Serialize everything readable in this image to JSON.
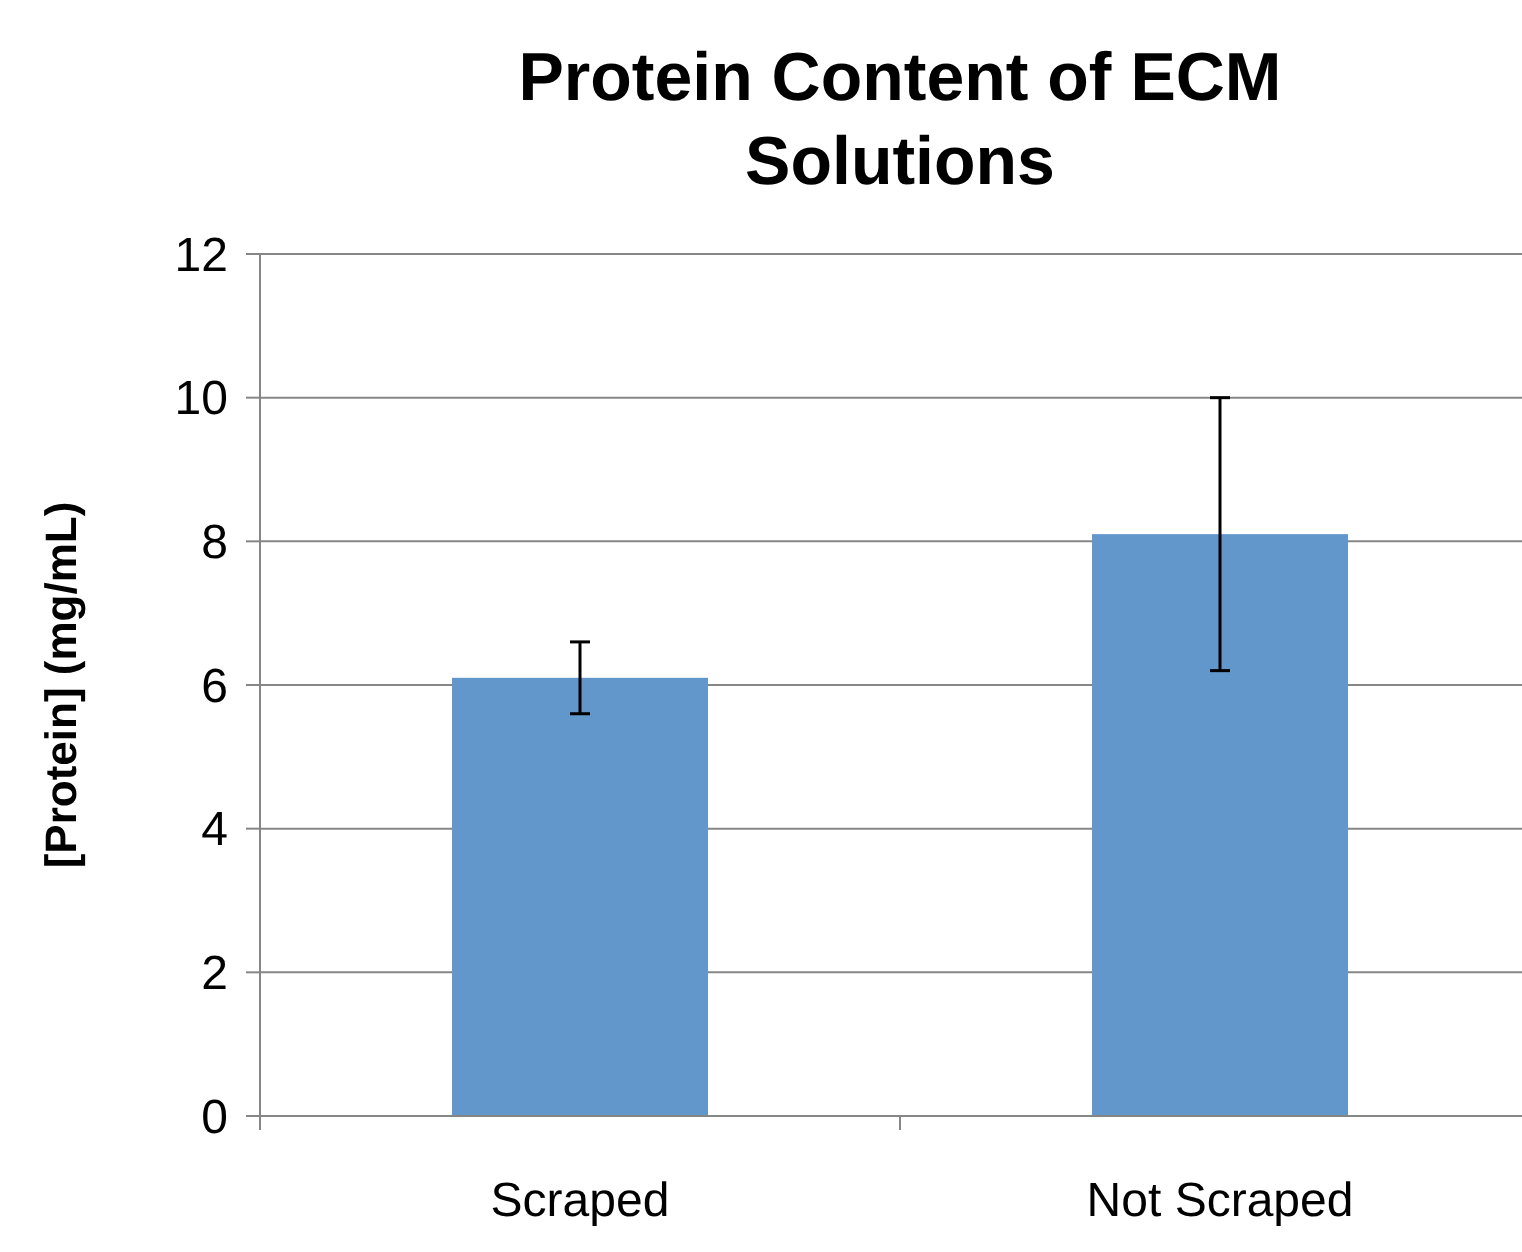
{
  "chart_data": {
    "type": "bar",
    "title": "Protein Content of ECM Solutions",
    "ylabel": "[Protein] (mg/mL)",
    "categories": [
      "Scraped",
      "Not Scraped"
    ],
    "values": [
      6.1,
      8.1
    ],
    "errors": [
      0.5,
      1.9
    ],
    "color": "#6197cb",
    "ylim": [
      0,
      12
    ],
    "yticks": [
      0,
      2,
      4,
      6,
      8,
      10,
      12
    ],
    "grid": "y"
  }
}
